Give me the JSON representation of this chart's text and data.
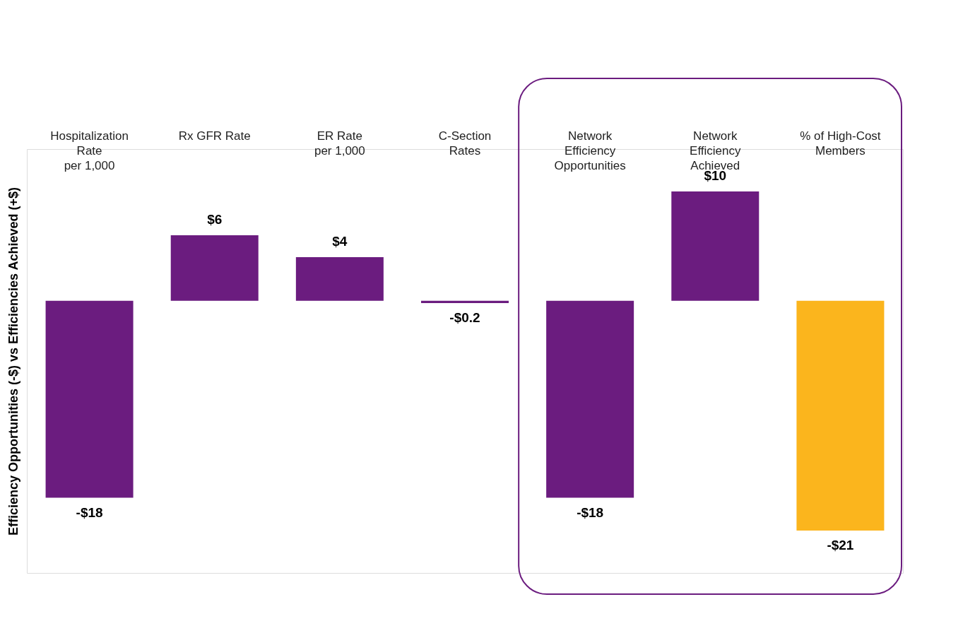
{
  "chart_data": {
    "type": "bar",
    "categories": [
      "Hospitalization\nRate\nper 1,000",
      "Rx GFR Rate",
      "ER Rate\nper 1,000",
      "C-Section\nRates",
      "Network\nEfficiency\nOpportunities",
      "Network\nEfficiency\nAchieved",
      "% of High-Cost\nMembers"
    ],
    "values": [
      -18,
      6,
      4,
      -0.2,
      -18,
      10,
      -21
    ],
    "colors": [
      "#6b1c7f",
      "#6b1c7f",
      "#6b1c7f",
      "#6b1c7f",
      "#6b1c7f",
      "#6b1c7f",
      "#fbb51d"
    ],
    "value_labels": [
      "-$18",
      "$6",
      "$4",
      "-$0.2",
      "-$18",
      "$10",
      "-$21"
    ],
    "ylabel": "Efficiency Opportunities (-$) vs Efficiencies Achieved (+$)",
    "grid": false
  }
}
